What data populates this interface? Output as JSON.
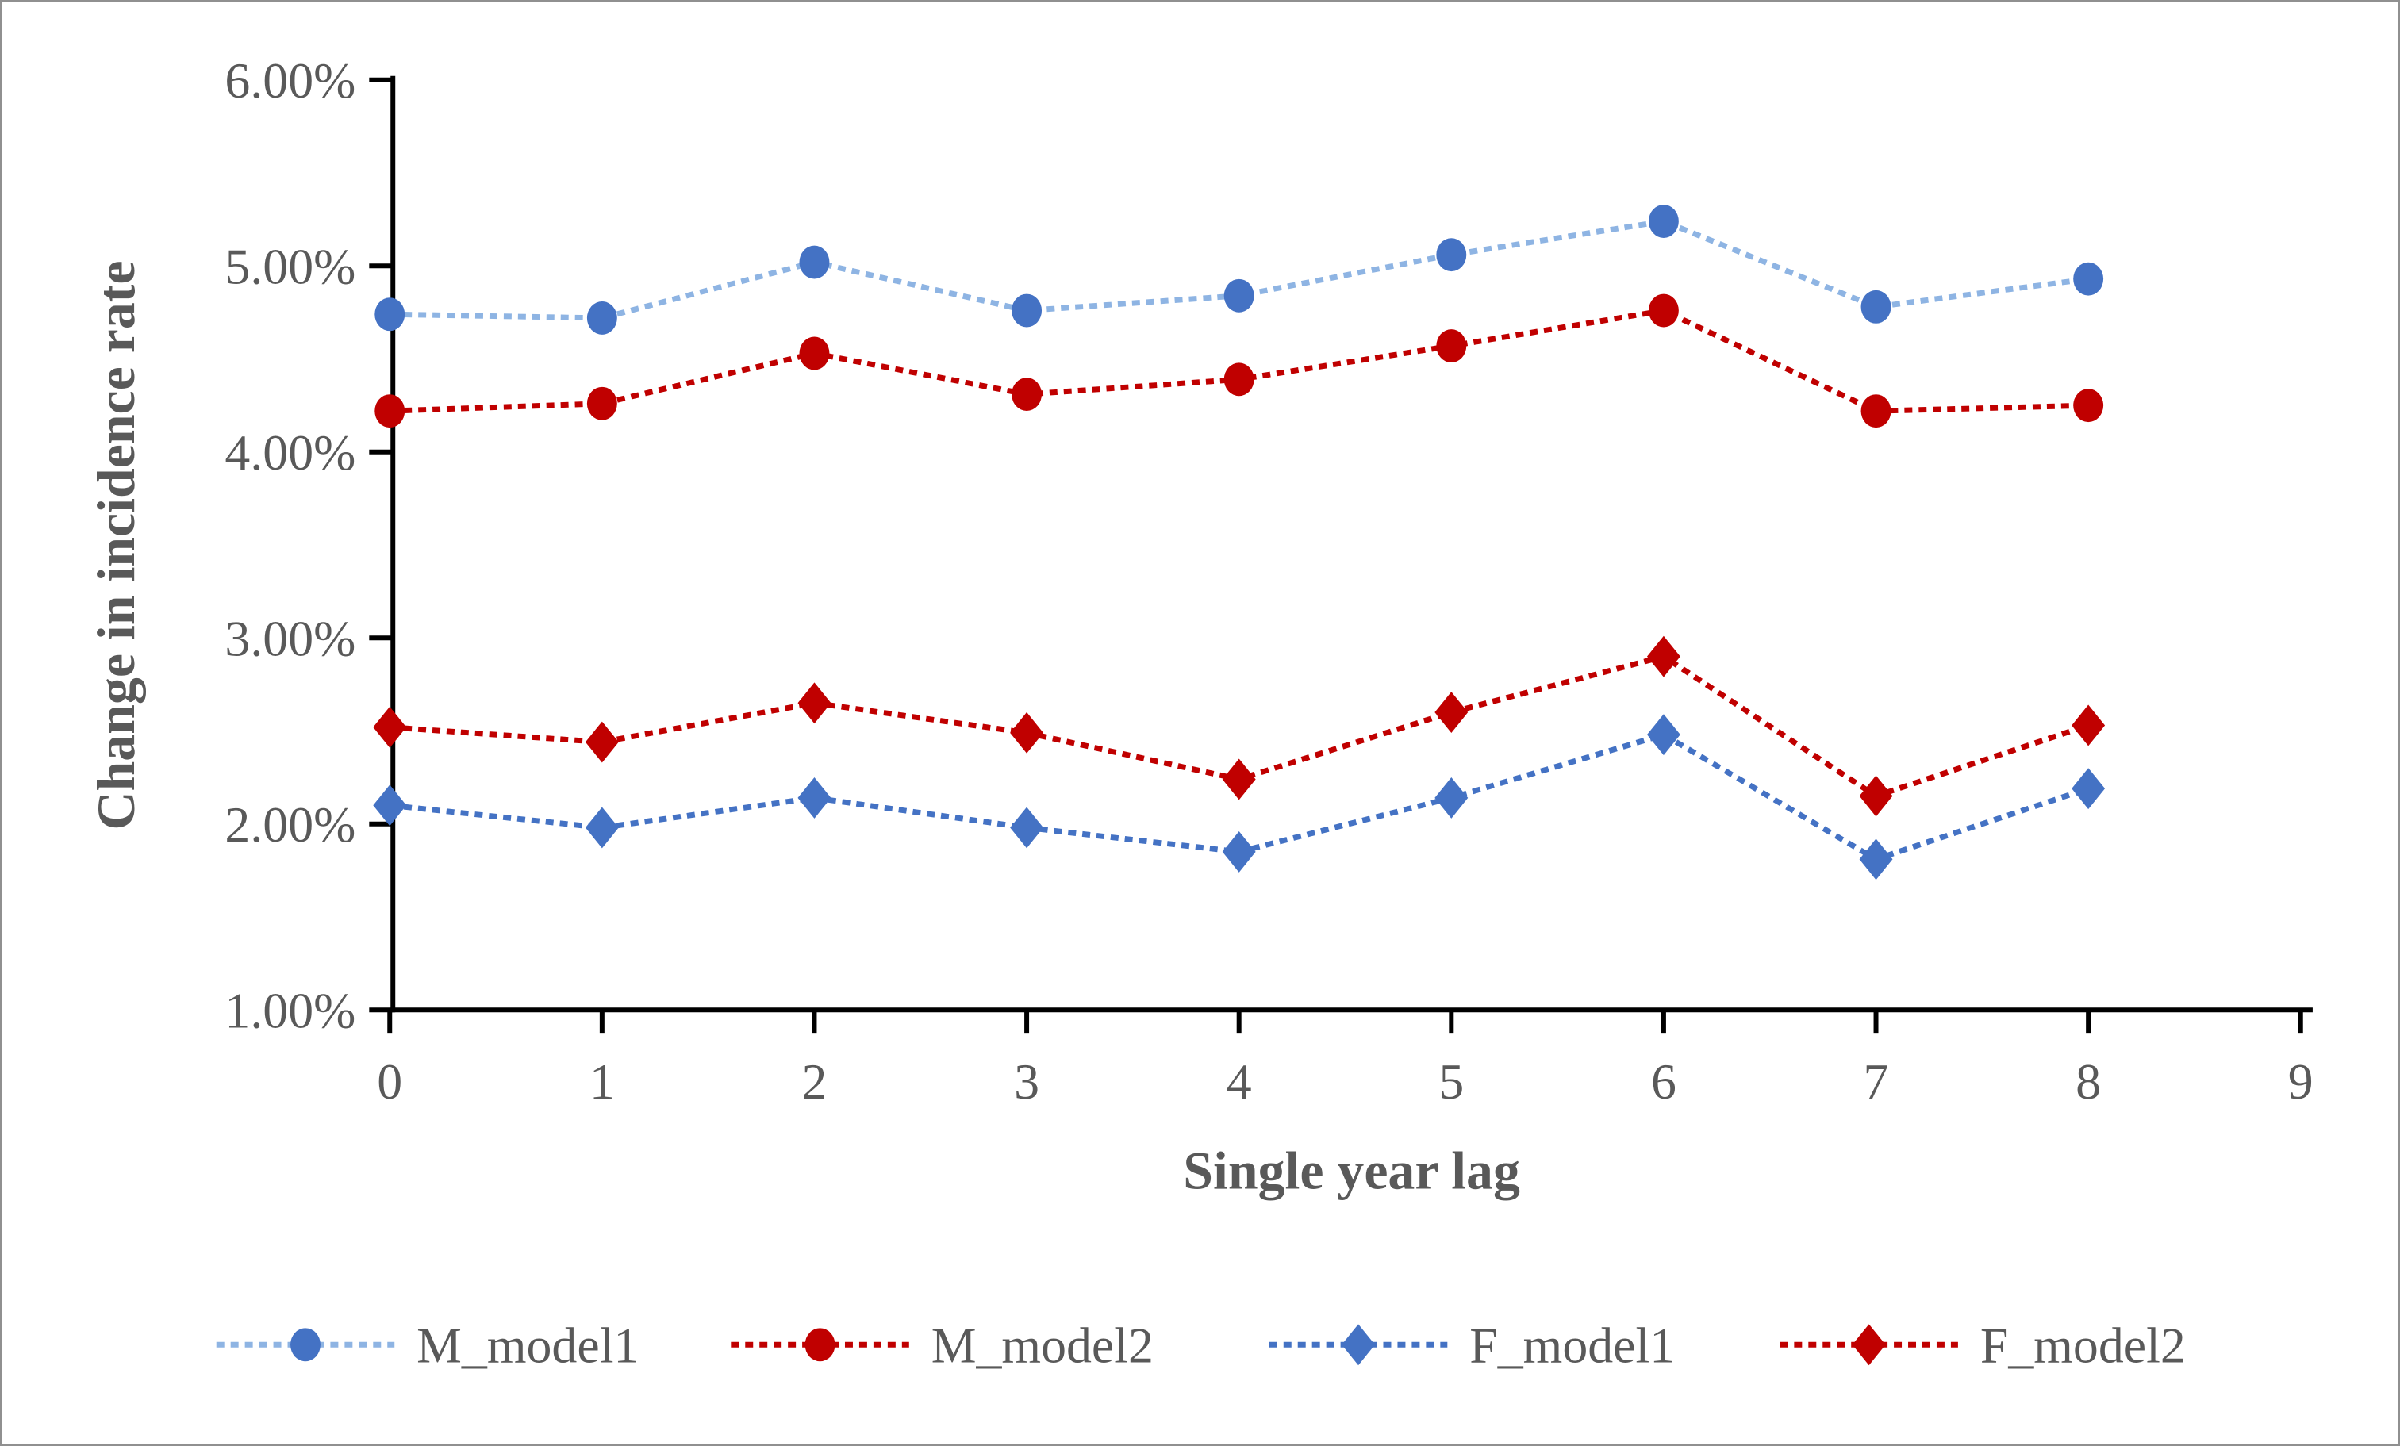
{
  "figure": {
    "background": "#ffffff",
    "border_color": "#909090"
  },
  "chart_data": {
    "type": "line",
    "title": "",
    "xlabel": "Single year lag",
    "ylabel": "Change in incidence rate",
    "x": [
      0,
      1,
      2,
      3,
      4,
      5,
      6,
      7,
      8
    ],
    "xlim": [
      0,
      9
    ],
    "x_tick_labels": [
      "0",
      "1",
      "2",
      "3",
      "4",
      "5",
      "6",
      "7",
      "8",
      "9"
    ],
    "ylim": [
      1.0,
      6.0
    ],
    "y_tick_values": [
      1,
      2,
      3,
      4,
      5,
      6
    ],
    "y_tick_labels": [
      "1.00%",
      "2.00%",
      "3.00%",
      "4.00%",
      "5.00%",
      "6.00%"
    ],
    "grid": false,
    "legend_position": "bottom",
    "axis_color": "#000000",
    "text_color": "#595959",
    "line_style": "dashed",
    "series": [
      {
        "name": "M_model1",
        "marker": "circle",
        "marker_color": "#4472C4",
        "line_color": "#8EB4E3",
        "values": [
          4.74,
          4.72,
          5.02,
          4.76,
          4.84,
          5.06,
          5.24,
          4.78,
          4.93
        ]
      },
      {
        "name": "M_model2",
        "marker": "circle",
        "marker_color": "#C00000",
        "line_color": "#C00000",
        "values": [
          4.22,
          4.26,
          4.53,
          4.31,
          4.39,
          4.57,
          4.76,
          4.22,
          4.25
        ]
      },
      {
        "name": "F_model1",
        "marker": "diamond",
        "marker_color": "#4472C4",
        "line_color": "#4472C4",
        "values": [
          2.1,
          1.98,
          2.14,
          1.98,
          1.85,
          2.14,
          2.48,
          1.81,
          2.19
        ]
      },
      {
        "name": "F_model2",
        "marker": "diamond",
        "marker_color": "#C00000",
        "line_color": "#C00000",
        "values": [
          2.52,
          2.44,
          2.65,
          2.49,
          2.24,
          2.6,
          2.9,
          2.15,
          2.53
        ]
      }
    ]
  }
}
